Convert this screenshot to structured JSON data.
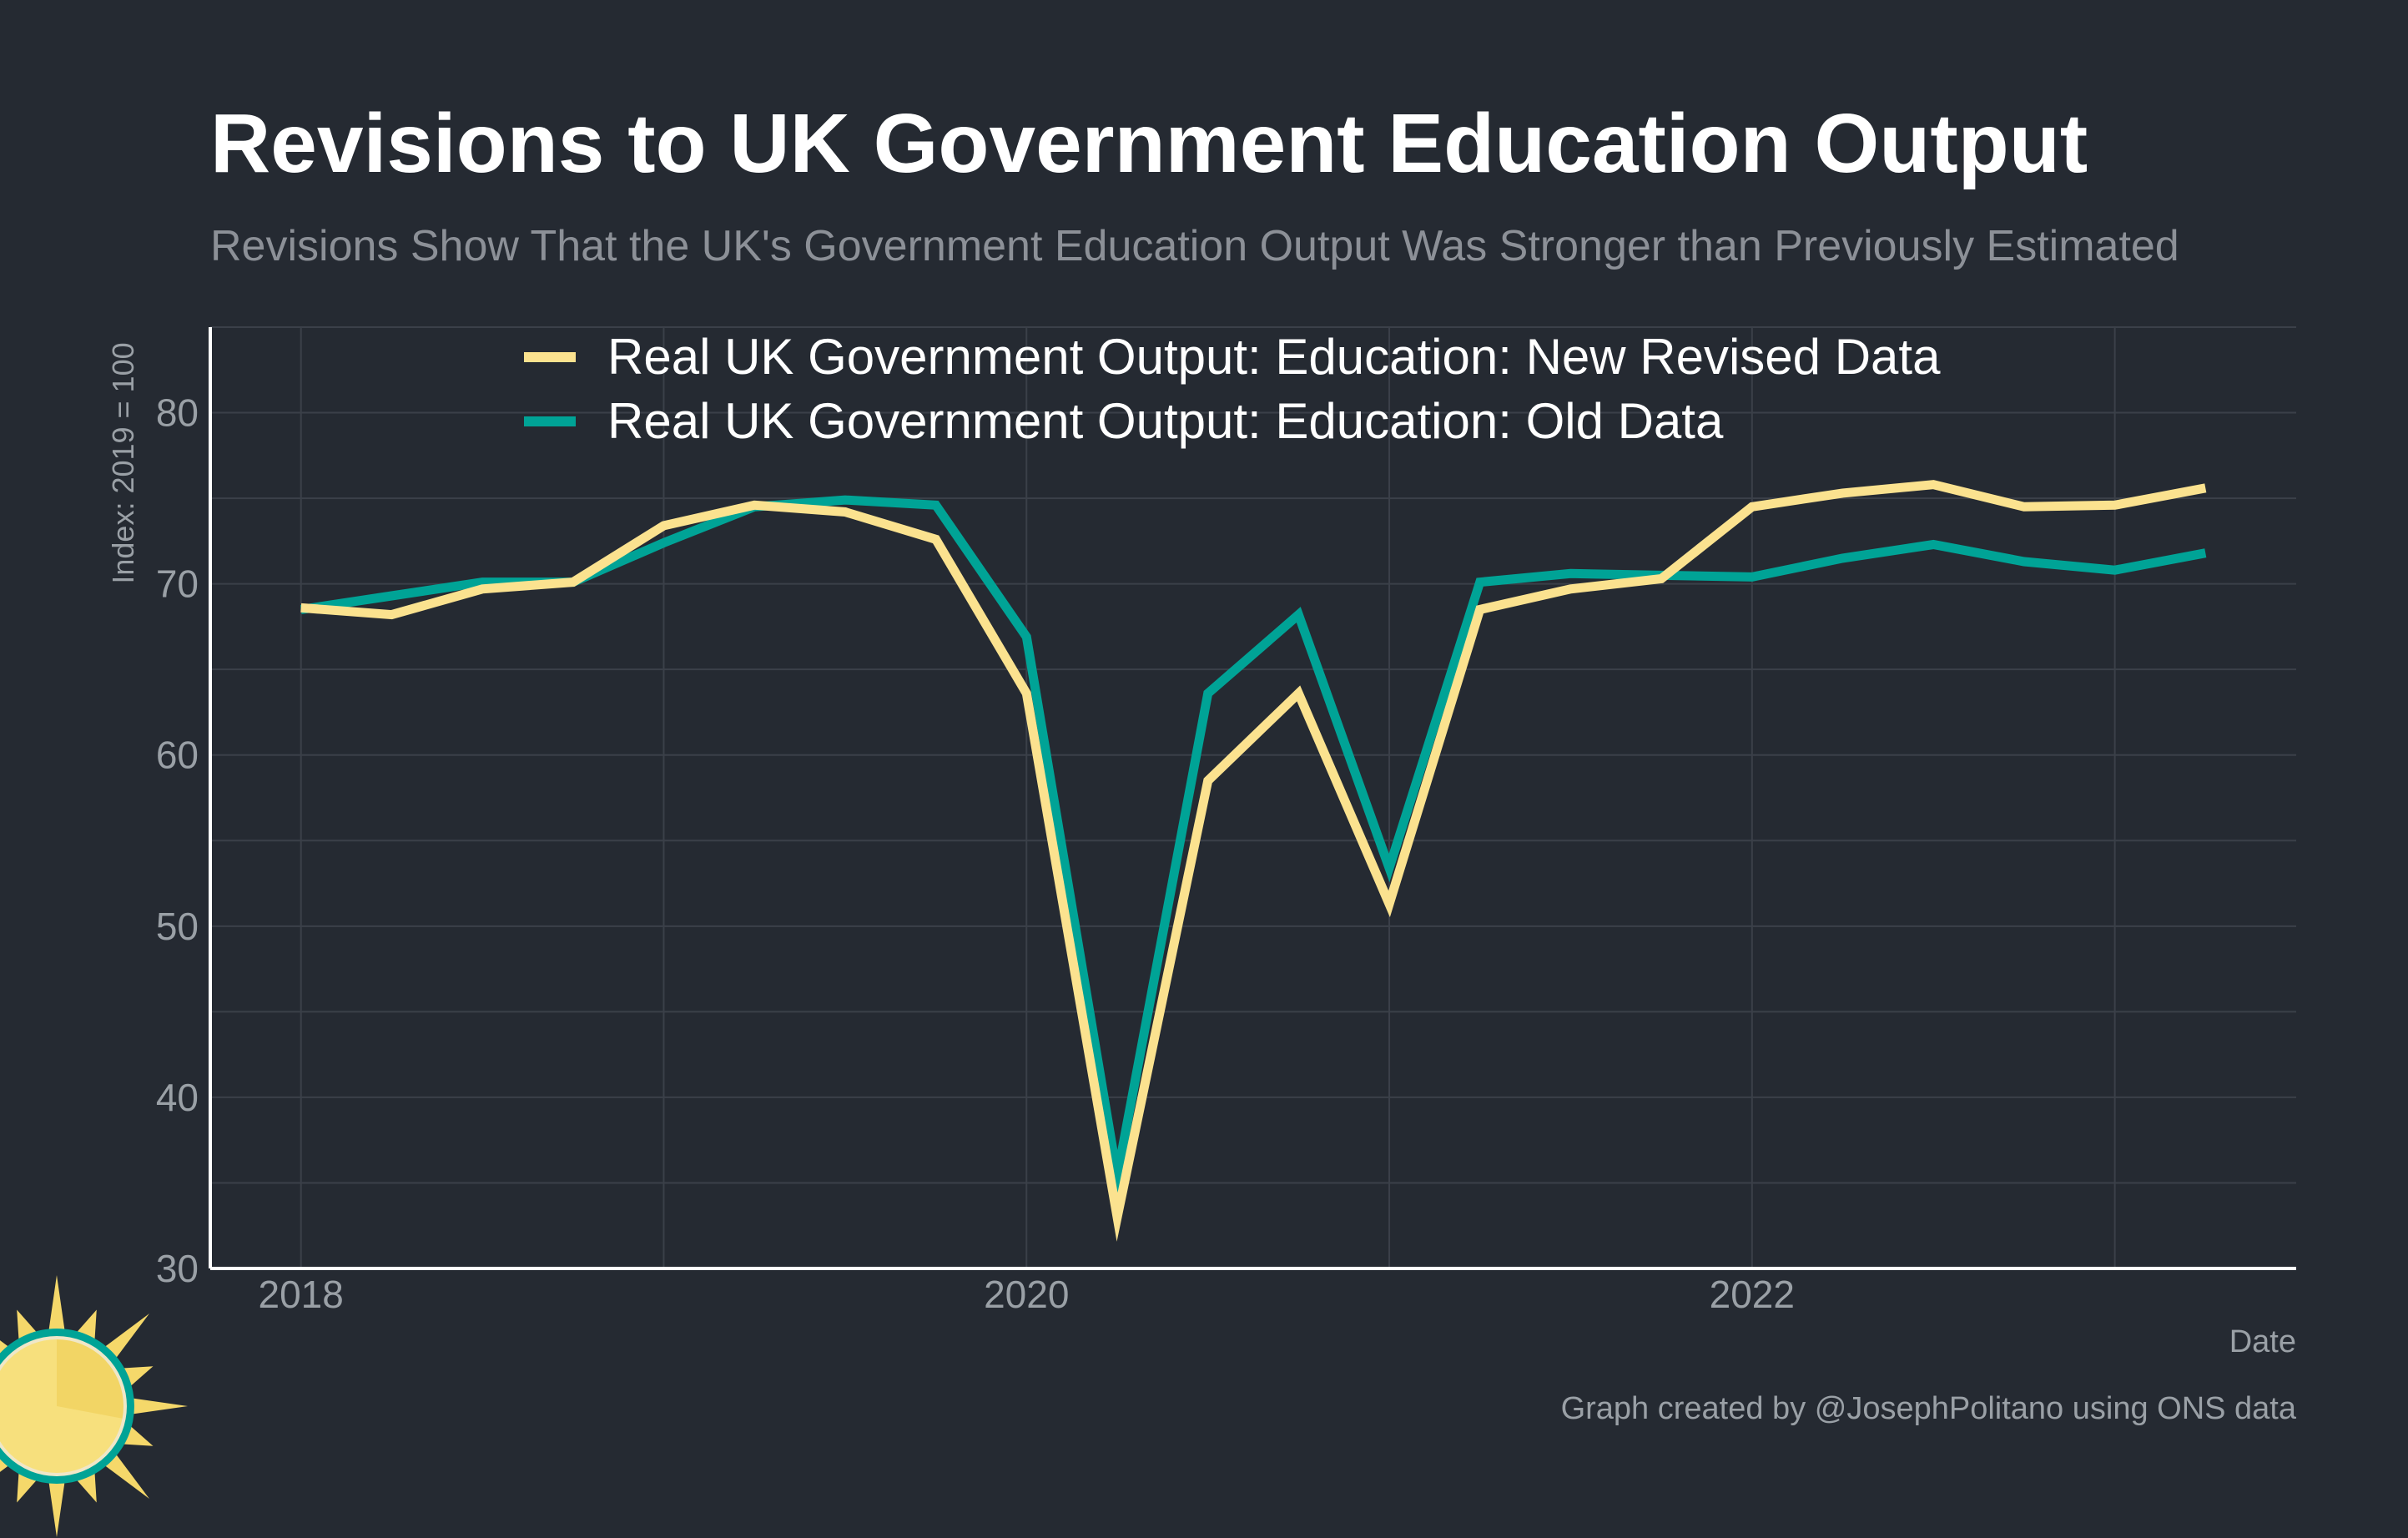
{
  "colors": {
    "background": "#252a32",
    "grid": "#3b4049",
    "axis": "#ffffff",
    "revised": "#fbe28f",
    "old": "#00a396",
    "sun_outer": "#00a396",
    "sun_face": "#f7e07d",
    "sun_rays": "#f5d86a"
  },
  "logo": {
    "icon": "sun-icon"
  },
  "chart_data": {
    "type": "line",
    "title": "Revisions to UK Government Education Output",
    "subtitle": "Revisions Show That the UK's Government Education Output Was Stronger than Previously Estimated",
    "xlabel": "Date",
    "ylabel": "Index: 2019 = 100",
    "credit": "Graph created by @JosephPolitano using ONS data",
    "x_ticks": [
      {
        "label": "2018",
        "value": 2018
      },
      {
        "label": "2020",
        "value": 2020
      },
      {
        "label": "2022",
        "value": 2022
      }
    ],
    "y_ticks": [
      {
        "label": "30",
        "value": 30
      },
      {
        "label": "40",
        "value": 40
      },
      {
        "label": "50",
        "value": 50
      },
      {
        "label": "60",
        "value": 60
      },
      {
        "label": "70",
        "value": 70
      },
      {
        "label": "80",
        "value": 80
      }
    ],
    "xlim": [
      2017.75,
      2023.5
    ],
    "ylim": [
      30,
      85
    ],
    "grid": true,
    "legend_position": "top",
    "x": [
      2018.0,
      2018.25,
      2018.5,
      2018.75,
      2019.0,
      2019.25,
      2019.5,
      2019.75,
      2020.0,
      2020.25,
      2020.5,
      2020.75,
      2021.0,
      2021.25,
      2021.5,
      2021.75,
      2022.0,
      2022.25,
      2022.5,
      2022.75,
      2023.0,
      2023.25
    ],
    "series": [
      {
        "name": "Real UK Government Output: Education: New Revised Data",
        "color": "#fbe28f",
        "values": [
          68.6,
          68.2,
          69.7,
          70.1,
          73.4,
          74.6,
          74.2,
          72.6,
          63.6,
          33.0,
          58.5,
          63.6,
          51.3,
          68.5,
          69.7,
          70.3,
          74.5,
          75.3,
          75.8,
          74.5,
          74.6,
          75.6
        ]
      },
      {
        "name": "Real UK Government Output: Education: Old Data",
        "color": "#00a396",
        "values": [
          68.5,
          69.3,
          70.1,
          70.1,
          72.4,
          74.5,
          74.9,
          74.6,
          66.9,
          35.4,
          63.6,
          68.2,
          53.4,
          70.1,
          70.6,
          70.5,
          70.4,
          71.5,
          72.3,
          71.3,
          70.8,
          71.8
        ]
      }
    ]
  }
}
